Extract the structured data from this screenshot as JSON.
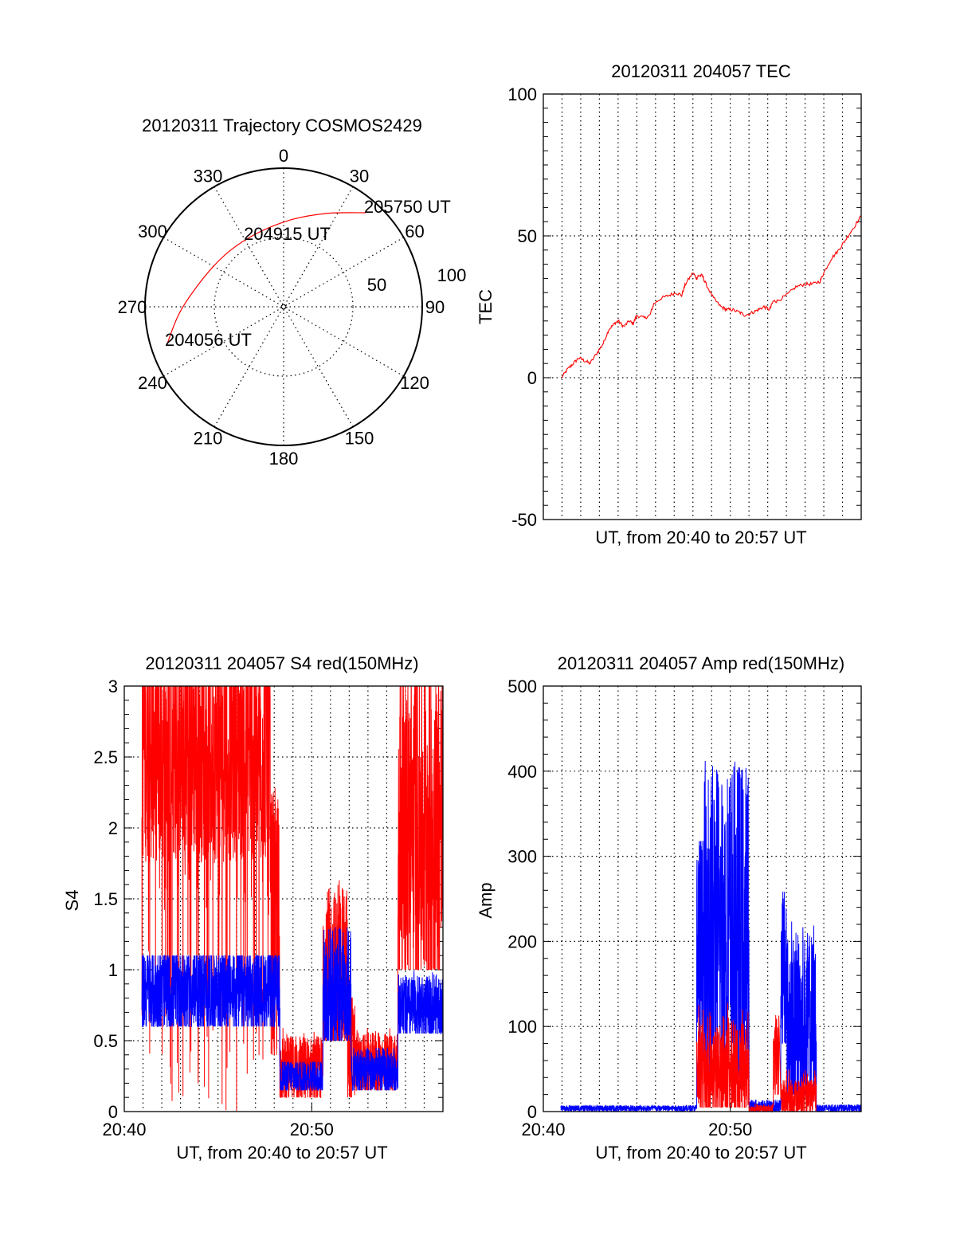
{
  "colors": {
    "red": "#ff0000",
    "blue": "#0000ff",
    "axis": "#000000"
  },
  "chart_data": [
    {
      "type": "polar",
      "title": "20120311 Trajectory COSMOS2429",
      "azimuth_labels": [
        "0",
        "30",
        "60",
        "90",
        "120",
        "150",
        "180",
        "210",
        "240",
        "270",
        "300",
        "330"
      ],
      "radial_labels": [
        "50",
        "100"
      ],
      "rlim": [
        0,
        100
      ],
      "grid": true,
      "series": [
        {
          "name": "trajectory",
          "color": "red",
          "points": [
            [
              251.6,
              89.0
            ],
            [
              268.7,
              73.6
            ],
            [
              300.1,
              58.4
            ],
            [
              330.3,
              55.6
            ],
            [
              1.1,
              61.5
            ],
            [
              24.0,
              73.6
            ],
            [
              41.1,
              90.0
            ]
          ]
        }
      ],
      "annotations": [
        {
          "text": "204056 UT",
          "az": 251.6,
          "r": 89.0
        },
        {
          "text": "204915 UT",
          "az": 330.3,
          "r": 55.6
        },
        {
          "text": "205750 UT",
          "az": 41.1,
          "r": 90.0
        }
      ]
    },
    {
      "type": "line",
      "title": "20120311 204057 TEC",
      "xlabel": "UT, from 20:40 to 20:57 UT",
      "ylabel": "TEC",
      "xlim_minutes_after_2040": [
        0,
        17
      ],
      "ylim": [
        -50,
        100
      ],
      "yticks": [
        "100",
        "50",
        "0",
        "-50"
      ],
      "ytick_values": [
        100,
        50,
        0,
        -50
      ],
      "grid": true,
      "series": [
        {
          "name": "TEC",
          "color": "red",
          "x": [
            0.98,
            1.3,
            1.6,
            1.9,
            2.2,
            2.5,
            2.9,
            3.2,
            3.5,
            3.8,
            4.0,
            4.3,
            4.6,
            4.8,
            5.0,
            5.4,
            5.7,
            5.9,
            6.3,
            6.7,
            7.1,
            7.4,
            7.6,
            8.0,
            8.2,
            8.3,
            8.5,
            8.7,
            9.1,
            9.5,
            9.8,
            10.1,
            10.5,
            10.8,
            11.2,
            11.5,
            11.8,
            12.1,
            12.3,
            12.5,
            13.0,
            13.5,
            14.0,
            14.4,
            14.8,
            15.0,
            15.4,
            15.8,
            16.1,
            16.5,
            17.0
          ],
          "y": [
            0,
            3,
            5,
            7,
            6,
            5,
            9,
            12,
            17,
            19,
            20,
            18,
            20,
            19,
            22,
            21,
            22,
            26,
            28,
            29,
            30,
            29,
            33,
            37,
            35,
            36,
            36,
            33,
            28,
            25,
            24,
            24,
            23,
            22,
            23,
            24,
            25,
            24,
            27,
            27,
            29,
            32,
            33,
            33,
            34,
            37,
            42,
            45,
            48,
            52,
            57
          ]
        }
      ]
    },
    {
      "type": "line",
      "title": "20120311 204057 S4 red(150MHz)",
      "xlabel": "UT, from 20:40 to 20:57 UT",
      "ylabel": "S4",
      "xlim_minutes_after_2040": [
        0,
        17
      ],
      "xticks": [
        "20:40",
        "20:50"
      ],
      "xtick_values": [
        0,
        10
      ],
      "ylim": [
        0,
        3
      ],
      "yticks": [
        "0",
        "0.5",
        "1",
        "1.5",
        "2",
        "2.5",
        "3"
      ],
      "ytick_values": [
        0,
        0.5,
        1,
        1.5,
        2,
        2.5,
        3
      ],
      "grid": true,
      "series": [
        {
          "name": "S4 red",
          "color": "red",
          "envelope_note": "segments: [t_start_min, t_end_min, low, high, typical]",
          "segments": [
            [
              0.94,
              7.8,
              0,
              3,
              2.6
            ],
            [
              7.8,
              8.3,
              0.4,
              2.3,
              1.2
            ],
            [
              8.3,
              10.6,
              0.1,
              0.6,
              0.28
            ],
            [
              10.6,
              11.9,
              0.5,
              1.7,
              0.95
            ],
            [
              11.9,
              12.3,
              0.1,
              1.0,
              0.4
            ],
            [
              12.3,
              14.6,
              0.15,
              0.6,
              0.32
            ],
            [
              14.6,
              17,
              1.0,
              3,
              2.0
            ]
          ]
        },
        {
          "name": "S4 blue",
          "color": "blue",
          "segments": [
            [
              0.94,
              8.3,
              0.6,
              1.1,
              0.85
            ],
            [
              8.3,
              10.6,
              0.15,
              0.35,
              0.25
            ],
            [
              10.6,
              12.1,
              0.5,
              1.3,
              0.85
            ],
            [
              12.1,
              14.6,
              0.15,
              0.45,
              0.28
            ],
            [
              14.6,
              17,
              0.55,
              1.0,
              0.72
            ]
          ]
        }
      ]
    },
    {
      "type": "line",
      "title": "20120311 204057 Amp red(150MHz)",
      "xlabel": "UT, from 20:40 to 20:57 UT",
      "ylabel": "Amp",
      "xlim_minutes_after_2040": [
        0,
        17
      ],
      "xticks": [
        "20:40",
        "20:50"
      ],
      "xtick_values": [
        0,
        10
      ],
      "ylim": [
        0,
        500
      ],
      "yticks": [
        "0",
        "100",
        "200",
        "300",
        "400",
        "500"
      ],
      "ytick_values": [
        0,
        100,
        200,
        300,
        400,
        500
      ],
      "grid": true,
      "series": [
        {
          "name": "Amp blue",
          "color": "blue",
          "segments": [
            [
              0.94,
              8.2,
              0,
              7,
              4
            ],
            [
              8.2,
              8.6,
              60,
              318,
              180
            ],
            [
              8.6,
              11,
              40,
              412,
              200
            ],
            [
              11,
              12.7,
              0,
              15,
              6
            ],
            [
              12.7,
              13,
              80,
              270,
              170
            ],
            [
              13,
              14.6,
              20,
              230,
              100
            ],
            [
              14.6,
              17,
              0,
              8,
              4
            ]
          ]
        },
        {
          "name": "Amp red",
          "color": "red",
          "segments": [
            [
              8.2,
              11,
              5,
              130,
              45
            ],
            [
              11,
              12.3,
              0,
              10,
              3
            ],
            [
              12.3,
              12.6,
              20,
              115,
              60
            ],
            [
              12.7,
              14.6,
              0,
              50,
              15
            ]
          ]
        }
      ]
    }
  ]
}
